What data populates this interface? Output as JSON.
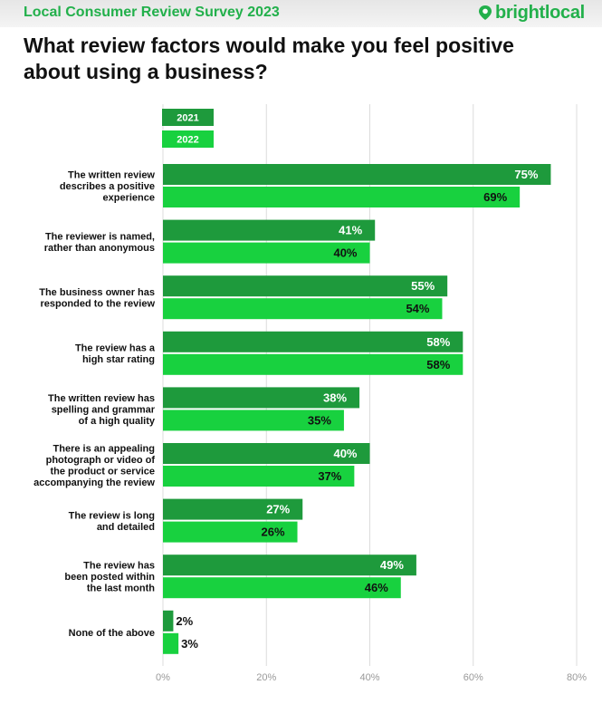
{
  "header": {
    "survey_title": "Local Consumer Review Survey 2023",
    "brand": "brightlocal"
  },
  "chart_data": {
    "type": "bar",
    "orientation": "horizontal",
    "title": "What review factors would make you feel positive about using a business?",
    "categories": [
      [
        "The written review",
        "describes a positive",
        "experience"
      ],
      [
        "The reviewer is named,",
        "rather than anonymous"
      ],
      [
        "The business owner has",
        "responded to the review"
      ],
      [
        "The review has a",
        "high star rating"
      ],
      [
        "The written review has",
        "spelling and grammar",
        "of a high quality"
      ],
      [
        "There is an appealing",
        "photograph or video of",
        "the product or service",
        "accompanying the review"
      ],
      [
        "The review is long",
        "and detailed"
      ],
      [
        "The review has",
        "been posted within",
        "the last month"
      ],
      [
        "None of the above"
      ]
    ],
    "series": [
      {
        "name": "2021",
        "color": "#1e9a3c",
        "values": [
          75,
          41,
          55,
          58,
          38,
          40,
          27,
          49,
          2
        ]
      },
      {
        "name": "2022",
        "color": "#18d13f",
        "values": [
          69,
          40,
          54,
          58,
          35,
          37,
          26,
          46,
          3
        ]
      }
    ],
    "xlim": [
      0,
      80
    ],
    "xticks": [
      0,
      20,
      40,
      60,
      80
    ],
    "tick_suffix": "%",
    "value_suffix": "%",
    "grid": true,
    "legend_position": "top-left"
  }
}
